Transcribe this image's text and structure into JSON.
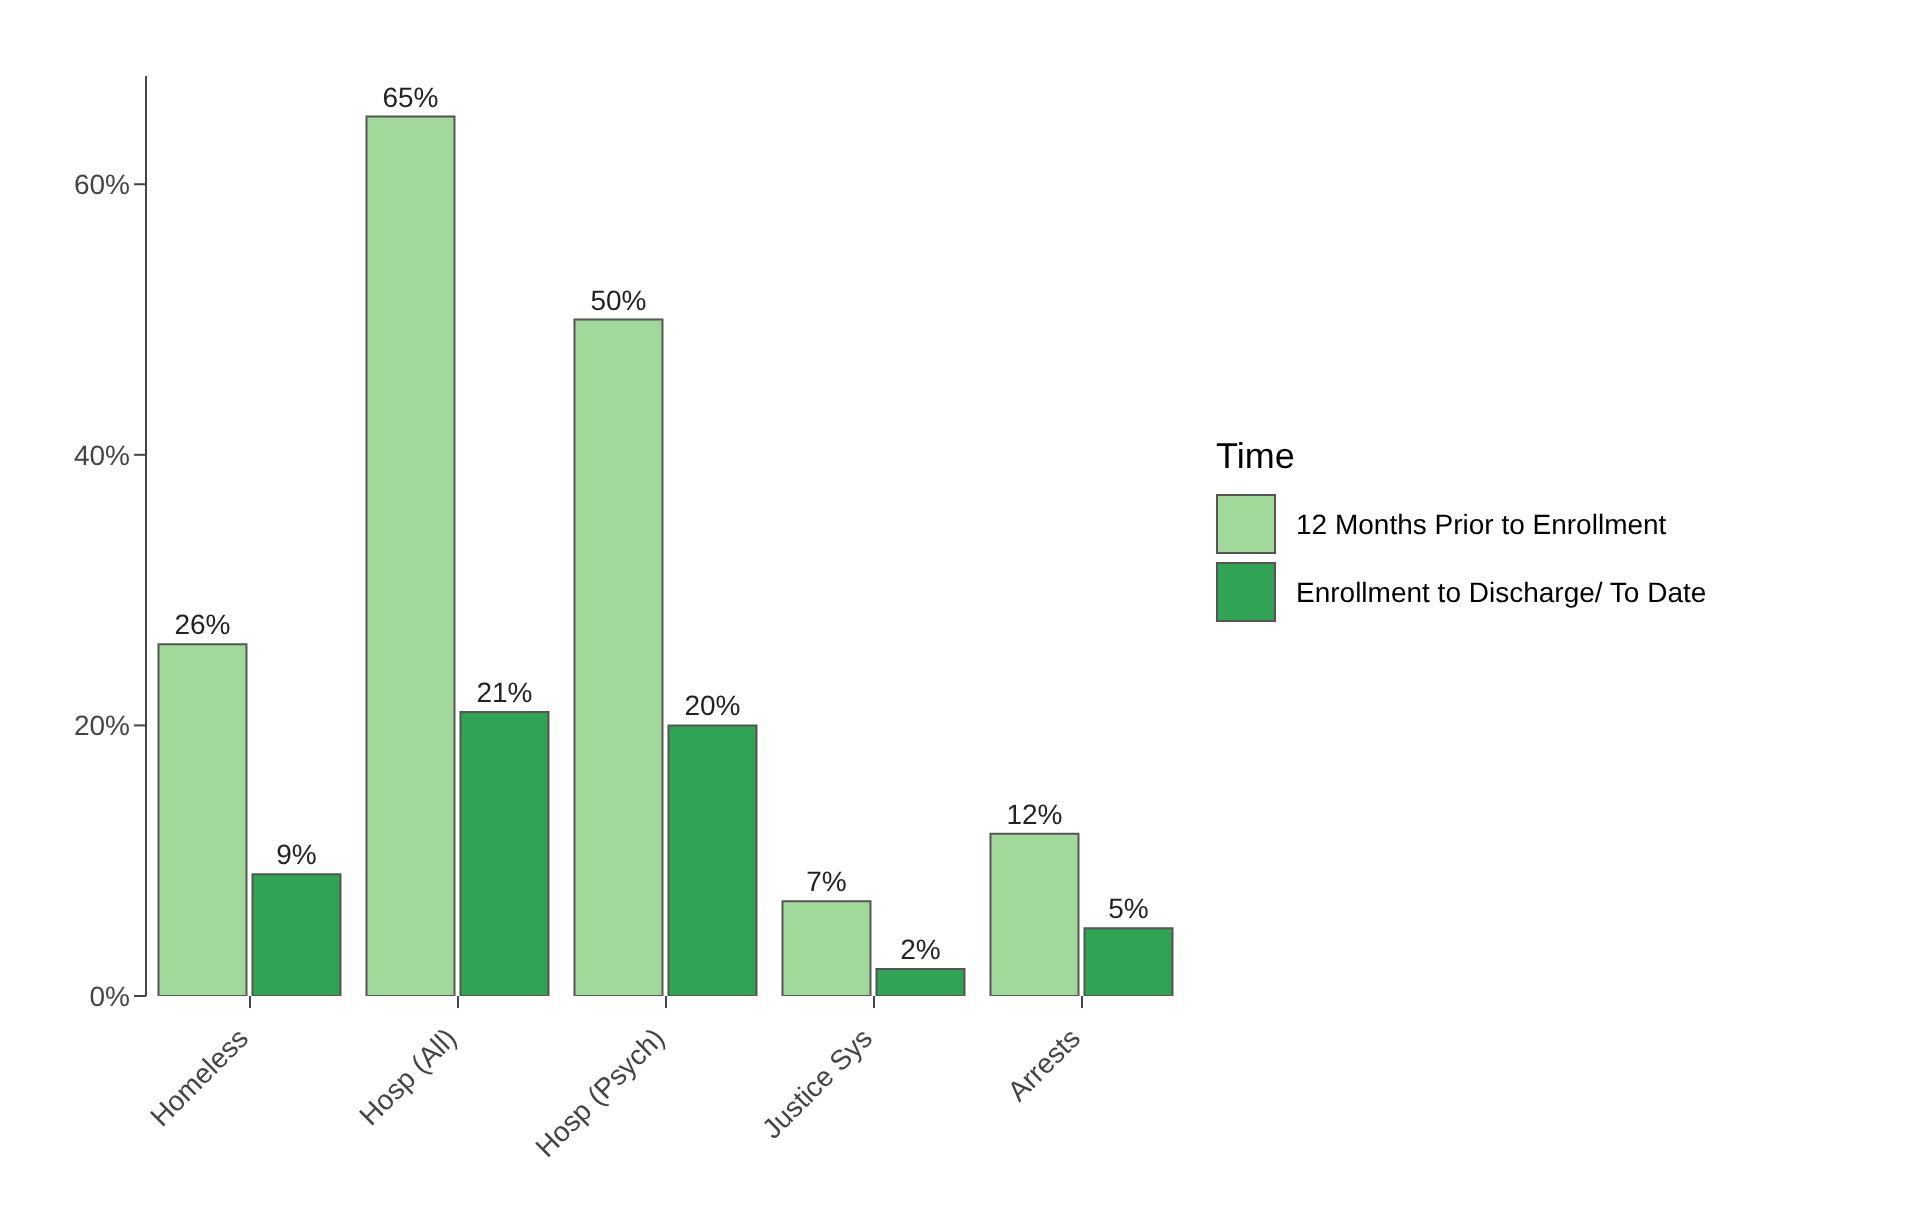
{
  "chart_data": {
    "type": "bar",
    "categories": [
      "Homeless",
      "Hosp (All)",
      "Hosp (Psych)",
      "Justice Sys",
      "Arrests"
    ],
    "series": [
      {
        "name": "12 Months Prior to Enrollment",
        "color": "#a1d99b",
        "values": [
          26,
          65,
          50,
          7,
          12
        ],
        "value_labels": [
          "26%",
          "65%",
          "50%",
          "7%",
          "12%"
        ]
      },
      {
        "name": "Enrollment to Discharge/ To Date",
        "color": "#31a354",
        "values": [
          9,
          21,
          20,
          2,
          5
        ],
        "value_labels": [
          "9%",
          "21%",
          "20%",
          "2%",
          "5%"
        ]
      }
    ],
    "legend_title": "Time",
    "legend": "right",
    "grid": false,
    "ylim": [
      0,
      68
    ],
    "yticks": [
      {
        "value": 0,
        "label": "0%"
      },
      {
        "value": 20,
        "label": "20%"
      },
      {
        "value": 40,
        "label": "40%"
      },
      {
        "value": 60,
        "label": "60%"
      }
    ]
  }
}
